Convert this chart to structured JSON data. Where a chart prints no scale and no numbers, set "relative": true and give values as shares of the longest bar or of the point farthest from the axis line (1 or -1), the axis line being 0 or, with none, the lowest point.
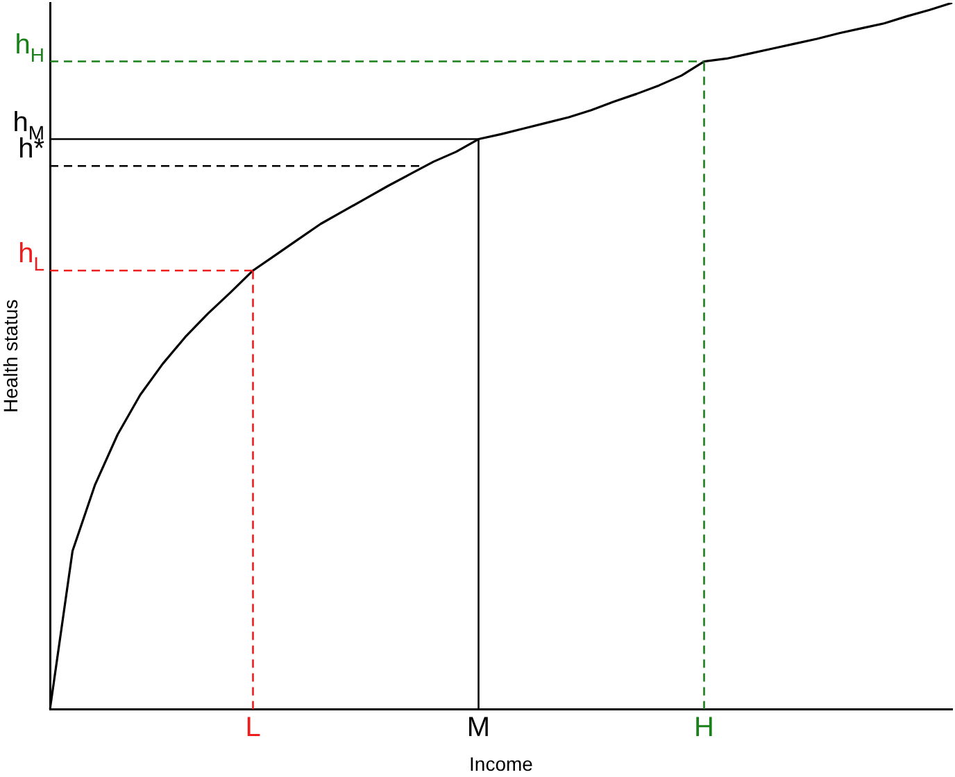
{
  "chart_data": {
    "type": "line",
    "relative": true,
    "xlabel": "Income",
    "ylabel": "Health status",
    "tick_labels": "x",
    "grid": false,
    "legend": false,
    "marker": "none",
    "categories": [
      null,
      null,
      null,
      null,
      null,
      null,
      null,
      null,
      null,
      "L",
      null,
      null,
      null,
      null,
      null,
      null,
      null,
      null,
      null,
      "M",
      null,
      null,
      null,
      null,
      null,
      null,
      null,
      null,
      null,
      "H",
      null,
      null,
      null,
      null,
      null,
      null,
      null,
      null,
      null,
      null,
      null
    ],
    "series": [
      {
        "color": "#000000",
        "values": [
          0,
          0.224,
          0.318,
          0.389,
          0.445,
          0.489,
          0.527,
          0.56,
          0.59,
          0.621,
          0.643,
          0.665,
          0.687,
          0.705,
          0.723,
          0.741,
          0.758,
          0.775,
          0.789,
          0.807,
          0.814,
          0.822,
          0.83,
          0.838,
          0.848,
          0.86,
          0.871,
          0.883,
          0.897,
          0.917,
          0.921,
          0.928,
          0.935,
          0.942,
          0.949,
          0.957,
          0.964,
          0.971,
          0.981,
          0.99,
          1
        ]
      }
    ],
    "ref_lines": [
      {
        "axis": "y",
        "value": 0.917,
        "label": "h$_{H}$",
        "color": "#1a801a",
        "line_style": "dashed"
      },
      {
        "axis": "y",
        "value": 0.807,
        "label": "h$_{M}$",
        "color": "#000000",
        "line_style": "solid"
      },
      {
        "axis": "y",
        "value": 0.769,
        "label": "h*",
        "color": "#000000",
        "line_style": "dashed"
      },
      {
        "axis": "y",
        "value": 0.621,
        "label": "h$_{L}$",
        "color": "#ee1c1c",
        "line_style": "dashed"
      },
      {
        "axis": "x",
        "value": "L",
        "color": "#ee1c1c",
        "line_style": "dashed"
      },
      {
        "axis": "x",
        "value": "M",
        "color": "#000000",
        "line_style": "solid"
      },
      {
        "axis": "x",
        "value": "H",
        "color": "#1a801a",
        "line_style": "dashed"
      }
    ]
  }
}
